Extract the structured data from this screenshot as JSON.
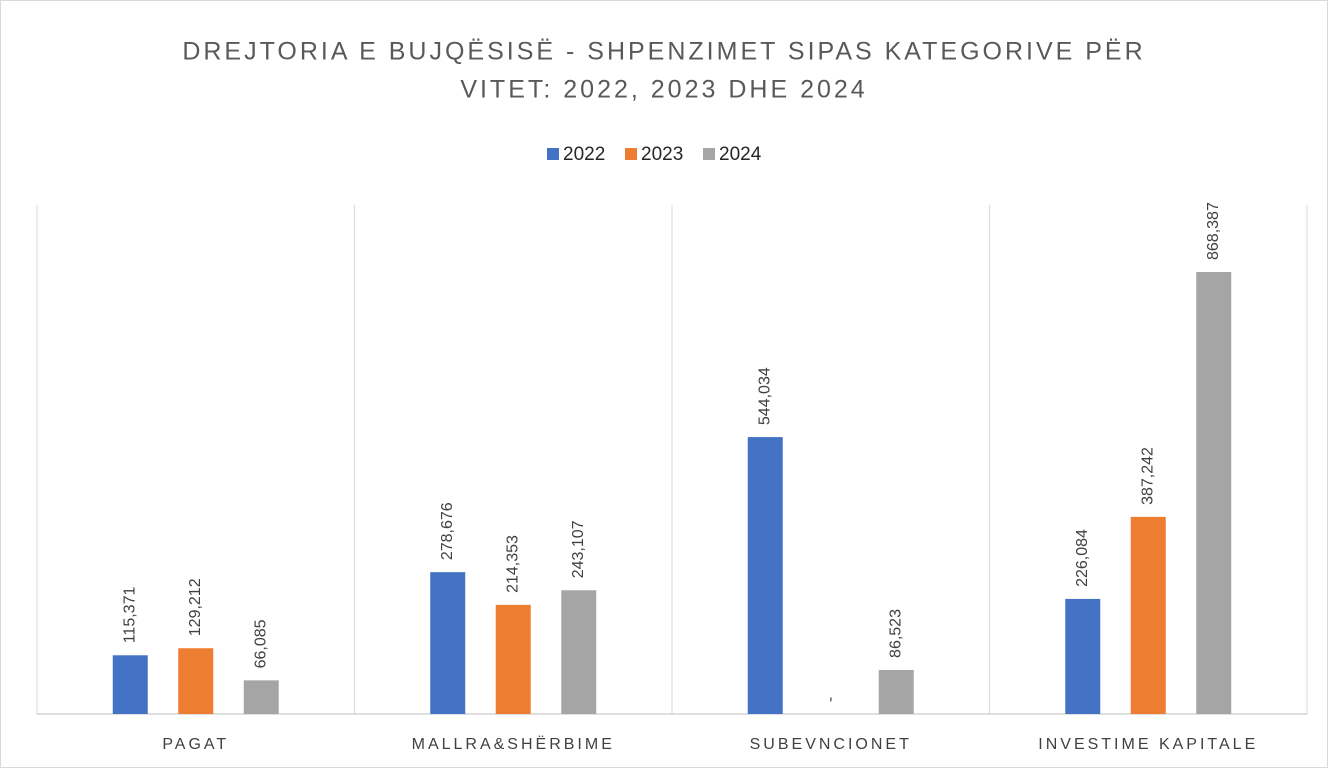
{
  "chart_data": {
    "type": "bar",
    "title": [
      "DREJTORIA E BUJQËSISË - SHPENZIMET SIPAS KATEGORIVE PËR",
      "VITET: 2022, 2023 DHE 2024"
    ],
    "categories": [
      "PAGAT",
      "MALLRA&SHËRBIME",
      "SUBEVNCIONET",
      "INVESTIME KAPITALE"
    ],
    "series": [
      {
        "name": "2022",
        "color": "#4472c4",
        "values": [
          115371,
          278676,
          544034,
          226084
        ],
        "value_labels": [
          "115,371",
          "278,676",
          "544,034",
          "226,084"
        ]
      },
      {
        "name": "2023",
        "color": "#ed7d31",
        "values": [
          129212,
          214353,
          0,
          387242
        ],
        "value_labels": [
          "129,212",
          "214,353",
          "-",
          "387,242"
        ]
      },
      {
        "name": "2024",
        "color": "#a5a5a5",
        "values": [
          66085,
          243107,
          86523,
          868387
        ],
        "value_labels": [
          "66,085",
          "243,107",
          "86,523",
          "868,387"
        ]
      }
    ],
    "ylim": [
      0,
      1000000
    ],
    "legend": "top"
  }
}
